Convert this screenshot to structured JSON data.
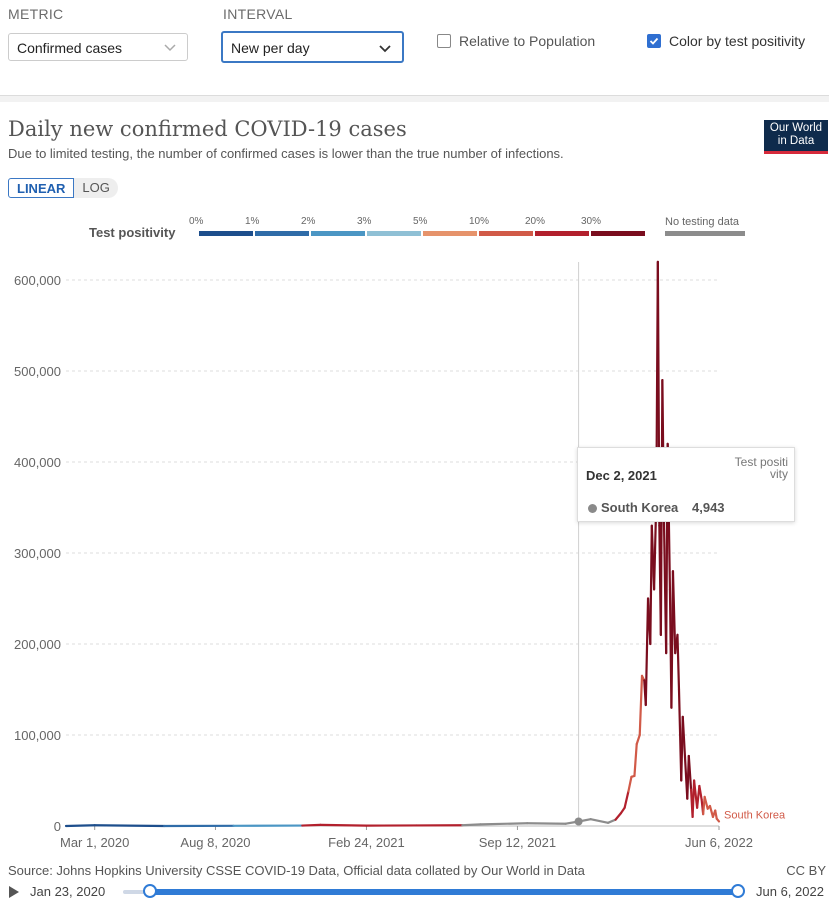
{
  "controls": {
    "metric_label": "METRIC",
    "metric_value": "Confirmed cases",
    "interval_label": "INTERVAL",
    "interval_value": "New per day",
    "relative_label": "Relative to Population",
    "relative_checked": false,
    "color_label": "Color by test positivity",
    "color_checked": true
  },
  "header": {
    "title": "Daily new confirmed COVID-19 cases",
    "subtitle": "Due to limited testing, the number of confirmed cases is lower than the true number of infections.",
    "logo_line1": "Our World",
    "logo_line2": "in Data"
  },
  "scale": {
    "linear": "LINEAR",
    "log": "LOG"
  },
  "legend": {
    "title": "Test positivity",
    "ticks": [
      "0%",
      "1%",
      "2%",
      "3%",
      "5%",
      "10%",
      "20%",
      "30%"
    ],
    "colors": [
      "#1d4e8c",
      "#2f6ca8",
      "#4b96c4",
      "#8fc0d5",
      "#e6936b",
      "#d15a48",
      "#b2202d",
      "#7a0d1e"
    ],
    "no_data_label": "No testing data",
    "no_data_color": "#8c8c8c"
  },
  "chart_data": {
    "type": "line",
    "title": "Daily new confirmed COVID-19 cases",
    "series": [
      {
        "name": "South Korea",
        "points": [
          [
            "2020-01-23",
            0,
            "#1d4e8c"
          ],
          [
            "2020-03-01",
            800,
            "#1d4e8c"
          ],
          [
            "2020-06-01",
            40,
            "#1d4e8c"
          ],
          [
            "2020-09-01",
            200,
            "#2f6ca8"
          ],
          [
            "2020-12-01",
            500,
            "#4b96c4"
          ],
          [
            "2020-12-25",
            1200,
            "#b2202d"
          ],
          [
            "2021-02-24",
            400,
            "#b2202d"
          ],
          [
            "2021-05-01",
            600,
            "#b2202d"
          ],
          [
            "2021-07-01",
            800,
            "#b2202d"
          ],
          [
            "2021-07-25",
            1800,
            "#8c8c8c"
          ],
          [
            "2021-09-25",
            3000,
            "#8c8c8c"
          ],
          [
            "2021-11-15",
            2500,
            "#8c8c8c"
          ],
          [
            "2021-12-02",
            4943,
            "#8c8c8c"
          ],
          [
            "2021-12-18",
            7500,
            "#8c8c8c"
          ],
          [
            "2022-01-10",
            3500,
            "#8c8c8c"
          ],
          [
            "2022-01-20",
            7000,
            "#8c8c8c"
          ],
          [
            "2022-01-27",
            14000,
            "#b2202d"
          ],
          [
            "2022-02-01",
            20000,
            "#b2202d"
          ],
          [
            "2022-02-06",
            38000,
            "#b2202d"
          ],
          [
            "2022-02-10",
            54000,
            "#d15a48"
          ],
          [
            "2022-02-14",
            55000,
            "#d15a48"
          ],
          [
            "2022-02-17",
            90000,
            "#d15a48"
          ],
          [
            "2022-02-21",
            100000,
            "#d15a48"
          ],
          [
            "2022-02-24",
            165000,
            "#d15a48"
          ],
          [
            "2022-02-27",
            160000,
            "#d15a48"
          ],
          [
            "2022-03-01",
            133000,
            "#7a0d1e"
          ],
          [
            "2022-03-04",
            250000,
            "#7a0d1e"
          ],
          [
            "2022-03-07",
            200000,
            "#7a0d1e"
          ],
          [
            "2022-03-09",
            330000,
            "#7a0d1e"
          ],
          [
            "2022-03-12",
            260000,
            "#7a0d1e"
          ],
          [
            "2022-03-15",
            360000,
            "#7a0d1e"
          ],
          [
            "2022-03-17",
            620000,
            "#7a0d1e"
          ],
          [
            "2022-03-19",
            330000,
            "#7a0d1e"
          ],
          [
            "2022-03-21",
            210000,
            "#7a0d1e"
          ],
          [
            "2022-03-23",
            490000,
            "#7a0d1e"
          ],
          [
            "2022-03-25",
            340000,
            "#7a0d1e"
          ],
          [
            "2022-03-28",
            190000,
            "#7a0d1e"
          ],
          [
            "2022-03-30",
            420000,
            "#7a0d1e"
          ],
          [
            "2022-04-02",
            260000,
            "#7a0d1e"
          ],
          [
            "2022-04-04",
            130000,
            "#7a0d1e"
          ],
          [
            "2022-04-06",
            280000,
            "#7a0d1e"
          ],
          [
            "2022-04-09",
            190000,
            "#7a0d1e"
          ],
          [
            "2022-04-12",
            210000,
            "#7a0d1e"
          ],
          [
            "2022-04-14",
            150000,
            "#7a0d1e"
          ],
          [
            "2022-04-17",
            50000,
            "#7a0d1e"
          ],
          [
            "2022-04-19",
            120000,
            "#7a0d1e"
          ],
          [
            "2022-04-22",
            75000,
            "#7a0d1e"
          ],
          [
            "2022-04-25",
            30000,
            "#7a0d1e"
          ],
          [
            "2022-04-27",
            77000,
            "#7a0d1e"
          ],
          [
            "2022-04-30",
            40000,
            "#7a0d1e"
          ],
          [
            "2022-05-02",
            10000,
            "#b2202d"
          ],
          [
            "2022-05-04",
            50000,
            "#b2202d"
          ],
          [
            "2022-05-08",
            20000,
            "#b2202d"
          ],
          [
            "2022-05-11",
            44000,
            "#b2202d"
          ],
          [
            "2022-05-14",
            29000,
            "#b2202d"
          ],
          [
            "2022-05-16",
            13000,
            "#b2202d"
          ],
          [
            "2022-05-18",
            32000,
            "#d15a48"
          ],
          [
            "2022-05-22",
            19000,
            "#d15a48"
          ],
          [
            "2022-05-25",
            22000,
            "#d15a48"
          ],
          [
            "2022-05-29",
            10000,
            "#d15a48"
          ],
          [
            "2022-06-01",
            17000,
            "#d15a48"
          ],
          [
            "2022-06-03",
            8000,
            "#d15a48"
          ],
          [
            "2022-06-06",
            5000,
            "#d15a48"
          ]
        ]
      }
    ],
    "x_ticks": [
      {
        "date": "2020-03-01",
        "label": "Mar 1, 2020"
      },
      {
        "date": "2020-08-08",
        "label": "Aug 8, 2020"
      },
      {
        "date": "2021-02-24",
        "label": "Feb 24, 2021"
      },
      {
        "date": "2021-09-12",
        "label": "Sep 12, 2021"
      },
      {
        "date": "2022-06-06",
        "label": "Jun 6, 2022"
      }
    ],
    "y_ticks": [
      0,
      100000,
      200000,
      300000,
      400000,
      500000,
      600000
    ],
    "y_tick_labels": [
      "0",
      "100,000",
      "200,000",
      "300,000",
      "400,000",
      "500,000",
      "600,000"
    ],
    "xlim": [
      "2020-01-23",
      "2022-06-06"
    ],
    "ylim": [
      0,
      620000
    ],
    "grid": true,
    "hover": {
      "date": "2021-12-02",
      "value": 4943
    },
    "end_label": "South Korea",
    "end_label_color": "#d15a48"
  },
  "tooltip": {
    "date": "Dec 2, 2021",
    "header": "Test positivity",
    "country": "South Korea",
    "value": "4,943"
  },
  "footer": {
    "source": "Source: Johns Hopkins University CSSE COVID-19 Data, Official data collated by Our World in Data",
    "license": "CC BY"
  },
  "timeline": {
    "start": "Jan 23, 2020",
    "end": "Jun 6, 2022"
  }
}
